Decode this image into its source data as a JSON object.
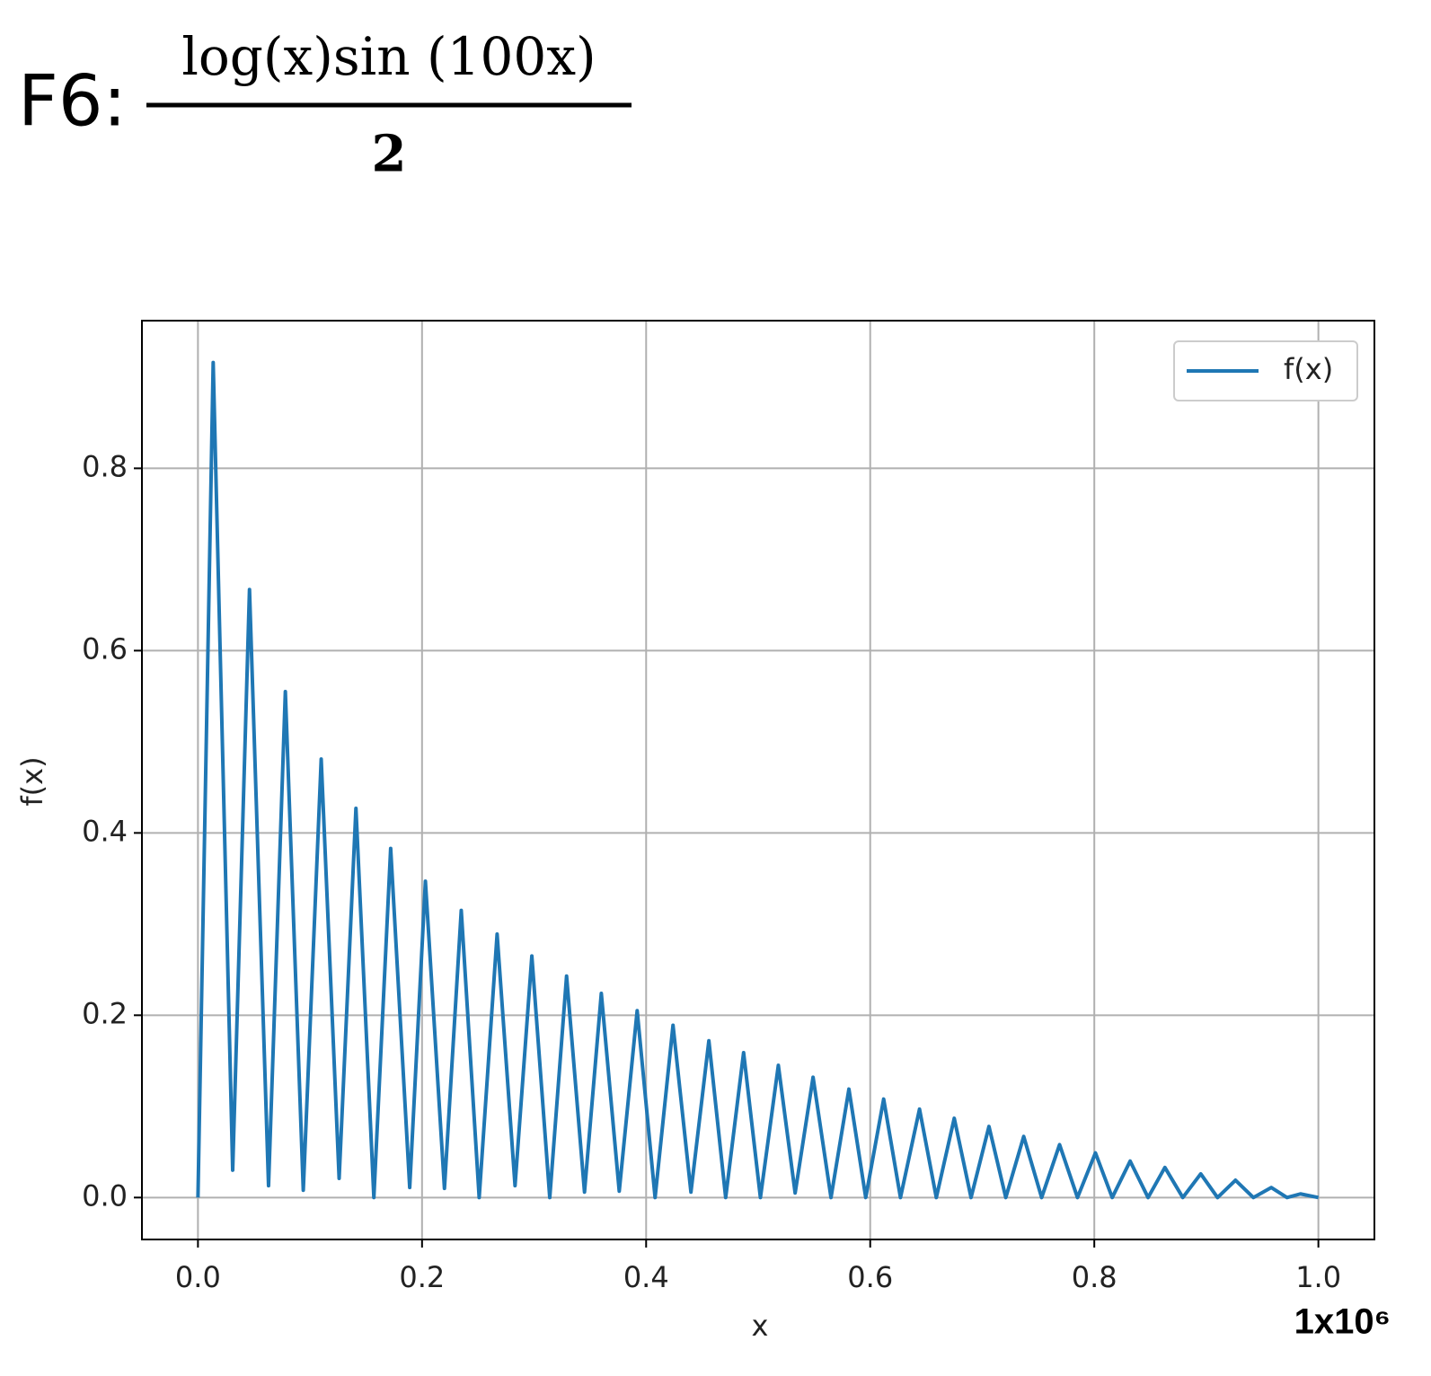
{
  "chart_data": {
    "type": "line",
    "title": {
      "prefix": "F6:",
      "numerator": "log(x)sin (100x)",
      "denominator": "2"
    },
    "x_label": "x",
    "y_label": "f(x)",
    "x_offset_label": "1x10⁶",
    "xlim": [
      -0.05,
      1.05
    ],
    "ylim": [
      -0.046,
      0.962
    ],
    "xticks": [
      {
        "value": 0,
        "label": "0.0"
      },
      0.2,
      0.4,
      0.6,
      0.8,
      {
        "value": 1,
        "label": "1.0"
      }
    ],
    "yticks": [
      {
        "value": 0,
        "label": "0.0"
      },
      0.2,
      0.4,
      0.6,
      0.8
    ],
    "grid": true,
    "legend": "upper right",
    "series": [
      {
        "name": "f(x)",
        "color": "#1f77b4",
        "x": [
          0,
          0.0136,
          0.031,
          0.046,
          0.063,
          0.078,
          0.094,
          0.11,
          0.126,
          0.141,
          0.157,
          0.172,
          0.189,
          0.203,
          0.22,
          0.235,
          0.251,
          0.267,
          0.283,
          0.298,
          0.314,
          0.329,
          0.345,
          0.36,
          0.376,
          0.392,
          0.408,
          0.424,
          0.44,
          0.456,
          0.471,
          0.487,
          0.502,
          0.518,
          0.533,
          0.549,
          0.565,
          0.581,
          0.596,
          0.612,
          0.627,
          0.644,
          0.659,
          0.675,
          0.69,
          0.706,
          0.721,
          0.737,
          0.753,
          0.769,
          0.785,
          0.801,
          0.816,
          0.832,
          0.848,
          0.863,
          0.879,
          0.895,
          0.91,
          0.926,
          0.942,
          0.958,
          0.972,
          0.984,
          1.0
        ],
        "values": [
          0,
          0.916,
          0.03,
          0.667,
          0.013,
          0.555,
          0.008,
          0.481,
          0.021,
          0.427,
          0,
          0.383,
          0.011,
          0.347,
          0.01,
          0.315,
          0,
          0.289,
          0.013,
          0.265,
          0,
          0.243,
          0.006,
          0.224,
          0.007,
          0.205,
          0,
          0.189,
          0.006,
          0.172,
          0,
          0.159,
          0,
          0.145,
          0.005,
          0.132,
          0,
          0.119,
          0,
          0.108,
          0,
          0.097,
          0,
          0.087,
          0,
          0.078,
          0,
          0.067,
          0,
          0.058,
          0,
          0.049,
          0,
          0.04,
          0,
          0.033,
          0,
          0.026,
          0,
          0.019,
          0,
          0.011,
          0,
          0.004,
          0
        ]
      }
    ]
  }
}
